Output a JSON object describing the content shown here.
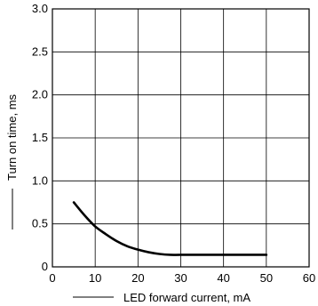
{
  "chart_data": {
    "type": "line",
    "title": "",
    "xlabel": "LED forward current, mA",
    "ylabel": "Turn on time, ms",
    "xlim": [
      0,
      60
    ],
    "ylim": [
      0,
      3.0
    ],
    "grid": true,
    "x_ticks": [
      0,
      10,
      20,
      30,
      40,
      50,
      60
    ],
    "x_tick_labels": [
      "0",
      "10",
      "20",
      "30",
      "40",
      "50",
      "60"
    ],
    "y_ticks": [
      0,
      0.5,
      1.0,
      1.5,
      2.0,
      2.5,
      3.0
    ],
    "y_tick_labels": [
      "0",
      "0.5",
      "1.0",
      "1.5",
      "2.0",
      "2.5",
      "3.0"
    ],
    "series": [
      {
        "x": [
          5,
          7.5,
          10,
          12.5,
          15,
          17.5,
          20,
          22.5,
          25,
          27.5,
          30,
          35,
          40,
          45,
          50
        ],
        "y": [
          0.75,
          0.6,
          0.47,
          0.38,
          0.3,
          0.24,
          0.2,
          0.17,
          0.15,
          0.14,
          0.14,
          0.14,
          0.14,
          0.14,
          0.14
        ]
      }
    ]
  }
}
